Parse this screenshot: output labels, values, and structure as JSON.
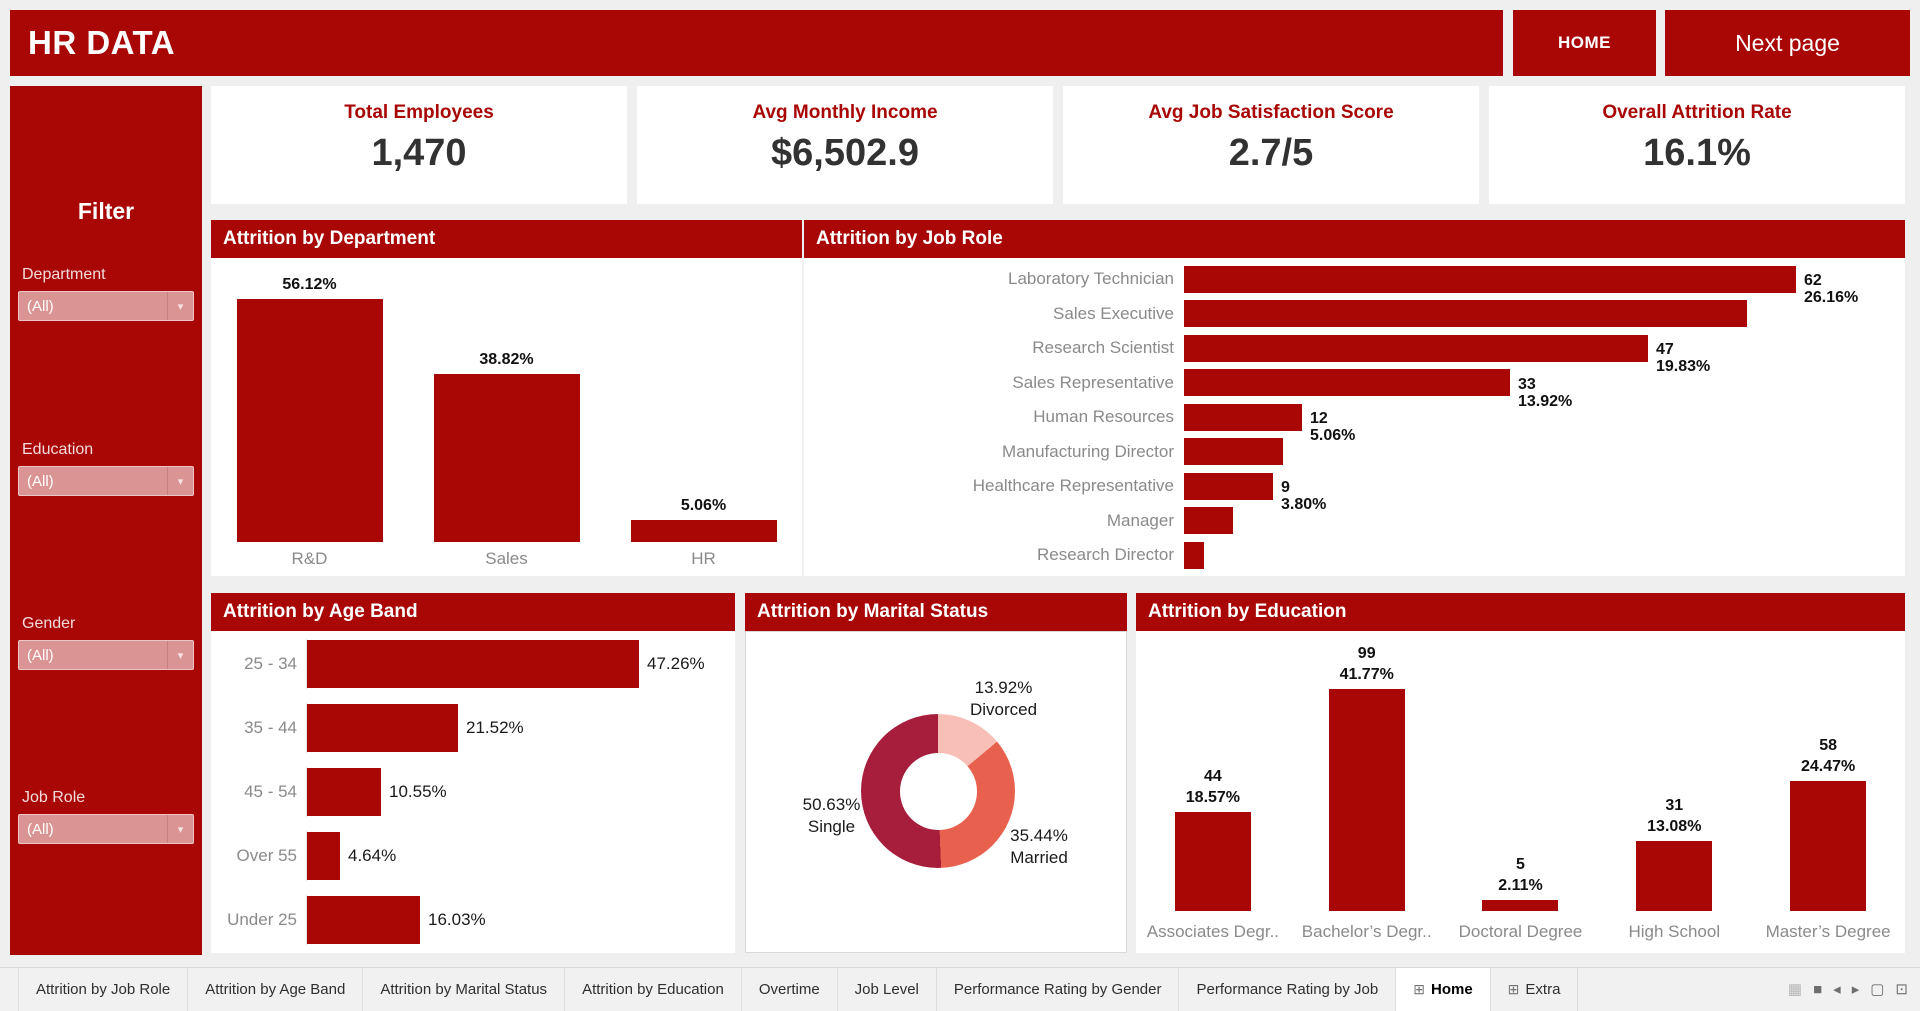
{
  "header": {
    "title": "HR DATA",
    "home_label": "HOME",
    "next_label": "Next page"
  },
  "colors": {
    "brand_red": "#A90606",
    "bar_red": "#A90606",
    "kpi_value": "#323232",
    "donut_single": "#A61E3C",
    "donut_married": "#E8604E",
    "donut_divorced": "#F8BFB6"
  },
  "sidebar": {
    "title": "Filter",
    "filters": [
      {
        "label": "Department",
        "value": "(All)"
      },
      {
        "label": "Education",
        "value": "(All)"
      },
      {
        "label": "Gender",
        "value": "(All)"
      },
      {
        "label": "Job Role",
        "value": "(All)"
      }
    ]
  },
  "kpis": [
    {
      "label": "Total Employees",
      "value": "1,470"
    },
    {
      "label": "Avg Monthly Income",
      "value": "$6,502.9"
    },
    {
      "label": "Avg Job Satisfaction Score",
      "value": "2.7/5"
    },
    {
      "label": "Overall Attrition Rate",
      "value": "16.1%"
    }
  ],
  "chart_data": [
    {
      "id": "department",
      "type": "bar",
      "title": "Attrition by Department",
      "categories": [
        "R&D",
        "Sales",
        "HR"
      ],
      "values": [
        56.12,
        38.82,
        5.06
      ],
      "labels": [
        "56.12%",
        "38.82%",
        "5.06%"
      ],
      "ylim": [
        0,
        60
      ],
      "grid": false
    },
    {
      "id": "jobrole",
      "type": "bar-horizontal",
      "title": "Attrition by Job Role",
      "categories": [
        "Laboratory Technician",
        "Sales Executive",
        "Research Scientist",
        "Sales Representative",
        "Human Resources",
        "Manufacturing Director",
        "Healthcare Representative",
        "Manager",
        "Research Director"
      ],
      "values": [
        62,
        57,
        47,
        33,
        12,
        10,
        9,
        5,
        2
      ],
      "labels": [
        [
          "62",
          "26.16%"
        ],
        null,
        [
          "47",
          "19.83%"
        ],
        [
          "33",
          "13.92%"
        ],
        [
          "12",
          "5.06%"
        ],
        null,
        [
          "9",
          "3.80%"
        ],
        null,
        null
      ],
      "note_unlabeled_values_estimated_from_bar_lengths": true
    },
    {
      "id": "ageband",
      "type": "bar-horizontal",
      "title": "Attrition by Age Band",
      "categories": [
        "25 - 34",
        "35 - 44",
        "45 - 54",
        "Over 55",
        "Under 25"
      ],
      "values": [
        47.26,
        21.52,
        10.55,
        4.64,
        16.03
      ],
      "labels": [
        "47.26%",
        "21.52%",
        "10.55%",
        "4.64%",
        "16.03%"
      ]
    },
    {
      "id": "marital",
      "type": "pie",
      "title": "Attrition by Marital Status",
      "donut": true,
      "start_angle_deg": 0,
      "clockwise": true,
      "slices": [
        {
          "label": "Divorced",
          "pct": 13.92,
          "pct_label": "13.92%",
          "color": "#F8BFB6"
        },
        {
          "label": "Married",
          "pct": 35.44,
          "pct_label": "35.44%",
          "color": "#E8604E"
        },
        {
          "label": "Single",
          "pct": 50.63,
          "pct_label": "50.63%",
          "color": "#A61E3C"
        }
      ]
    },
    {
      "id": "education",
      "type": "bar",
      "title": "Attrition by Education",
      "categories": [
        "Associates Degr..",
        "Bachelor’s Degr..",
        "Doctoral Degree",
        "High School",
        "Master’s Degree"
      ],
      "values": [
        44,
        99,
        5,
        31,
        58
      ],
      "count_labels": [
        "44",
        "99",
        "5",
        "31",
        "58"
      ],
      "pct_labels": [
        "18.57%",
        "41.77%",
        "2.11%",
        "13.08%",
        "24.47%"
      ]
    }
  ],
  "tabbar": {
    "tabs": [
      {
        "label": "Attrition by Job Role"
      },
      {
        "label": "Attrition by Age Band"
      },
      {
        "label": "Attrition by Marital Status"
      },
      {
        "label": "Attrition by Education"
      },
      {
        "label": "Overtime"
      },
      {
        "label": "Job Level"
      },
      {
        "label": "Performance Rating by Gender"
      },
      {
        "label": "Performance Rating by Job"
      },
      {
        "label": "Home",
        "icon": "⊞",
        "active": true
      },
      {
        "label": "Extra",
        "icon": "⊞"
      }
    ],
    "nav_icons": [
      {
        "name": "grid-view-icon",
        "glyph": "▦",
        "light": true
      },
      {
        "name": "filmstrip-icon",
        "glyph": "■"
      },
      {
        "name": "prev-sheet-icon",
        "glyph": "◂"
      },
      {
        "name": "next-sheet-icon",
        "glyph": "▸"
      },
      {
        "name": "fullscreen-icon",
        "glyph": "▢"
      },
      {
        "name": "presentation-icon",
        "glyph": "⊡"
      }
    ]
  }
}
